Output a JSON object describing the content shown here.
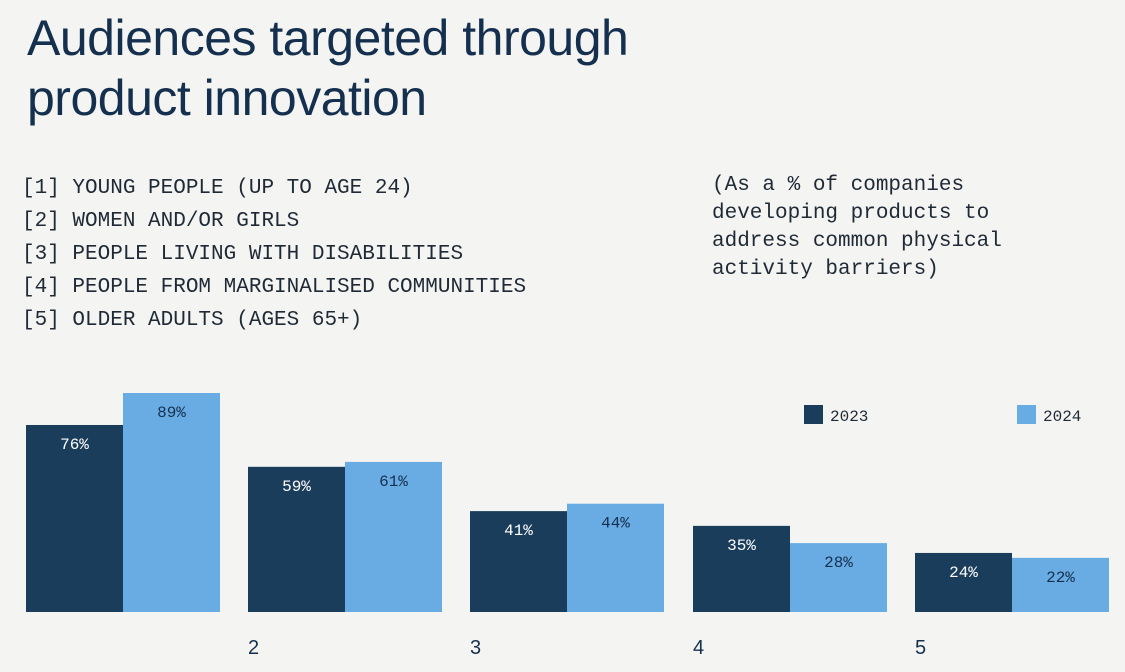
{
  "title_lines": [
    "Audiences targeted through",
    "product innovation"
  ],
  "subtitle_lines": [
    "(As a % of companies",
    "developing products to",
    "address common physical",
    "activity barriers)"
  ],
  "categories_legend": [
    "[1] YOUNG PEOPLE (UP TO AGE 24)",
    "[2] WOMEN AND/OR GIRLS",
    "[3] PEOPLE LIVING WITH DISABILITIES",
    "[4] PEOPLE FROM MARGINALISED COMMUNITIES",
    "[5] OLDER ADULTS (AGES 65+)"
  ],
  "colors": {
    "2023": "#1a3d5c",
    "2024": "#69ace4",
    "text_dark": "#15304f"
  },
  "chart_data": {
    "type": "bar",
    "categories": [
      "",
      "2",
      "3",
      "4",
      "5"
    ],
    "series": [
      {
        "name": "2023",
        "values": [
          76,
          59,
          41,
          35,
          24
        ]
      },
      {
        "name": "2024",
        "values": [
          89,
          61,
          44,
          28,
          22
        ]
      }
    ],
    "value_format": "%",
    "legend_position": "top-right",
    "ylim": [
      0,
      89
    ],
    "grid": false
  }
}
